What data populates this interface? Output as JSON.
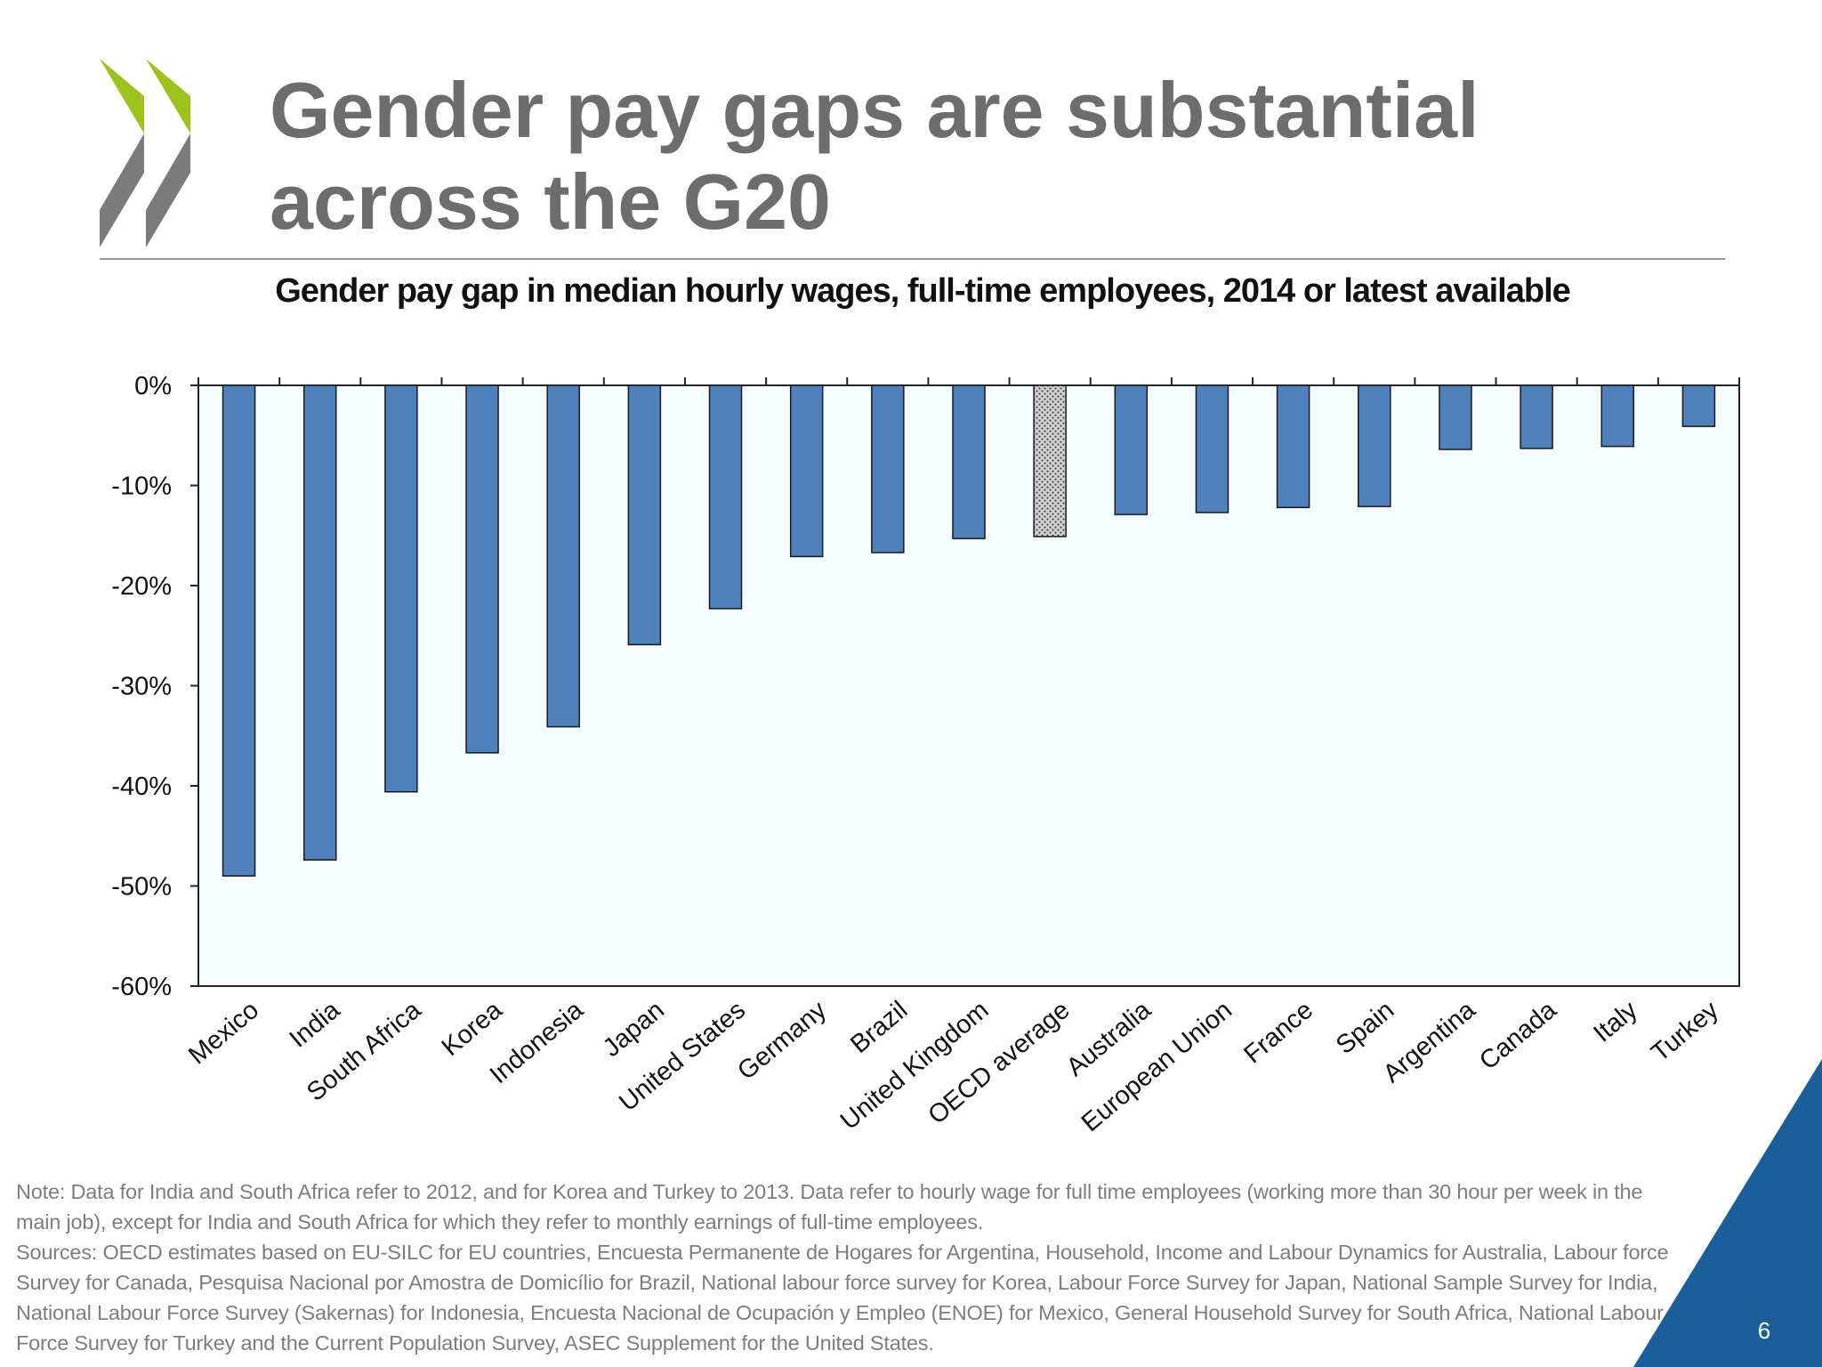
{
  "slide": {
    "title_line1": "Gender pay gaps are substantial",
    "title_line2": "across the G20",
    "page_number": "6",
    "logo_colors": {
      "green": "#9bc31c",
      "gray": "#7b7b7b"
    },
    "corner_color": "#1a5f9a"
  },
  "chart_data": {
    "type": "bar",
    "title": "Gender pay gap in median hourly wages, full-time employees, 2014 or latest available",
    "xlabel": "",
    "ylabel": "",
    "categories": [
      "Mexico",
      "India",
      "South Africa",
      "Korea",
      "Indonesia",
      "Japan",
      "United States",
      "Germany",
      "Brazil",
      "United Kingdom",
      "OECD average",
      "Australia",
      "European Union",
      "France",
      "Spain",
      "Argentina",
      "Canada",
      "Italy",
      "Turkey"
    ],
    "values": [
      -49.0,
      -47.4,
      -40.6,
      -36.7,
      -34.1,
      -25.9,
      -22.3,
      -17.1,
      -16.7,
      -15.3,
      -15.1,
      -12.9,
      -12.7,
      -12.2,
      -12.1,
      -6.4,
      -6.3,
      -6.1,
      -4.1
    ],
    "highlight": "OECD average",
    "ylim": [
      -60,
      0
    ],
    "yticks": [
      0,
      -10,
      -20,
      -30,
      -40,
      -50,
      -60
    ],
    "ytick_labels": [
      "0%",
      "-10%",
      "-20%",
      "-30%",
      "-40%",
      "-50%",
      "-60%"
    ],
    "bar_color": "#4f81bd",
    "highlight_color": "#d2d2d2",
    "plot_background": "#f5fcfd",
    "grid": false,
    "legend": "none"
  },
  "notes": {
    "note": "Note: Data for India and South Africa refer to 2012, and for Korea and Turkey to 2013. Data refer to hourly wage for full time employees (working more than 30 hour per week in the main job), except for India and South Africa for which they refer to monthly earnings of full-time employees.",
    "sources": "Sources: OECD estimates based on EU-SILC for EU countries, Encuesta Permanente de Hogares for Argentina, Household, Income and Labour Dynamics for Australia, Labour force Survey for Canada, Pesquisa Nacional por Amostra de Domicílio for Brazil, National labour force survey for Korea, Labour Force Survey for Japan, National Sample Survey for India, National Labour Force Survey (Sakernas) for Indonesia, Encuesta Nacional de Ocupación y Empleo (ENOE) for Mexico, General Household Survey for South Africa, National Labour Force Survey for Turkey and the Current Population Survey, ASEC Supplement for the United States."
  }
}
